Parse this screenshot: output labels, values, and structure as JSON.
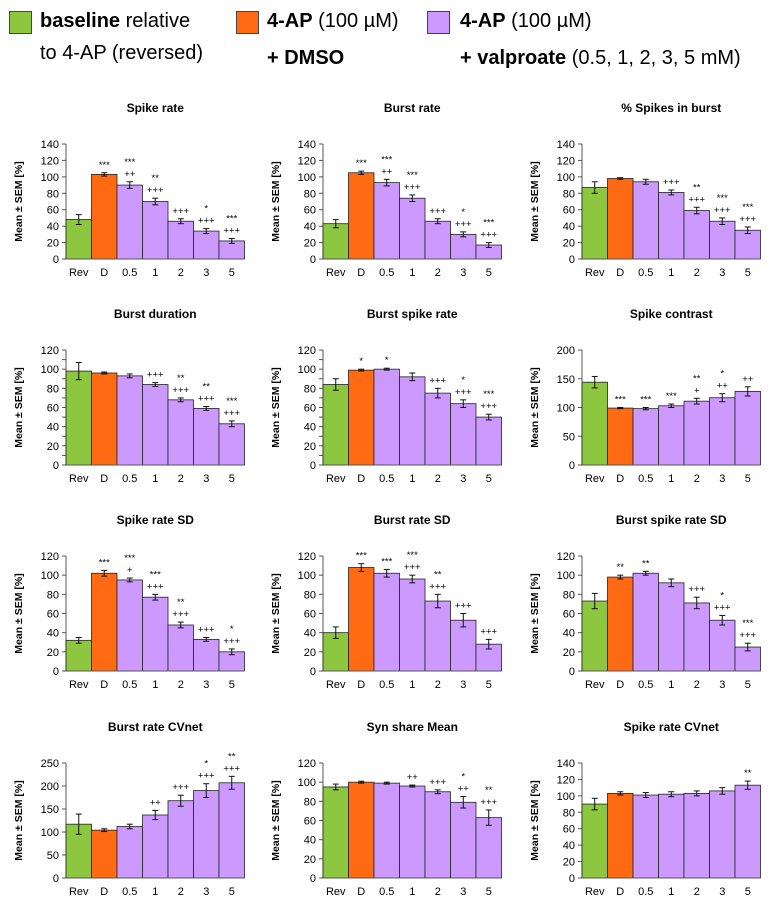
{
  "legend": {
    "items": [
      {
        "name": "baseline",
        "color": "#8dc63f",
        "bold": "baseline",
        "rest": " relative",
        "line2": "to 4-AP (reversed)"
      },
      {
        "name": "dmso",
        "color": "#ff6a13",
        "bold": "4-AP",
        "rest": " (100  µM)",
        "line2": "+ DMSO"
      },
      {
        "name": "valproate",
        "color": "#cc99ff",
        "bold": "4-AP",
        "rest": " (100 µM)",
        "line2_bold": "+ valproate",
        "line2_rest": " (0.5, 1, 2, 3, 5 mM)"
      }
    ]
  },
  "colors": {
    "baseline": "#8dc63f",
    "dmso": "#ff6a13",
    "valproate": "#cc99ff",
    "stroke": "#222222"
  },
  "chart_data": [
    {
      "type": "bar",
      "title": "Spike rate",
      "ylabel": "Mean ± SEM [%]",
      "categories": [
        "Rev",
        "D",
        "0.5",
        "1",
        "2",
        "3",
        "5"
      ],
      "values": [
        48,
        103,
        90,
        70,
        46,
        34,
        22
      ],
      "errors": [
        6,
        2,
        4,
        4,
        3,
        3,
        3
      ],
      "ylim": [
        0,
        140
      ],
      "yticks": [
        0,
        20,
        40,
        60,
        80,
        100,
        120,
        140
      ],
      "annotations": [
        [
          "",
          ""
        ],
        [
          "***",
          ""
        ],
        [
          "***",
          "++"
        ],
        [
          "**",
          "+++"
        ],
        [
          "",
          "+++"
        ],
        [
          "*",
          "+++"
        ],
        [
          "***",
          "+++"
        ]
      ]
    },
    {
      "type": "bar",
      "title": "Burst rate",
      "ylabel": "Mean ± SEM [%]",
      "categories": [
        "Rev",
        "D",
        "0.5",
        "1",
        "2",
        "3",
        "5"
      ],
      "values": [
        43,
        105,
        93,
        74,
        46,
        30,
        17
      ],
      "errors": [
        5,
        2,
        4,
        4,
        3,
        3,
        3
      ],
      "ylim": [
        0,
        140
      ],
      "yticks": [
        0,
        20,
        40,
        60,
        80,
        100,
        120,
        140
      ],
      "annotations": [
        [
          "",
          ""
        ],
        [
          "***",
          ""
        ],
        [
          "***",
          "++"
        ],
        [
          "***",
          "+++"
        ],
        [
          "",
          "+++"
        ],
        [
          "*",
          "+++"
        ],
        [
          "***",
          "+++"
        ]
      ]
    },
    {
      "type": "bar",
      "title": "% Spikes in burst",
      "ylabel": "Mean ± SEM [%]",
      "categories": [
        "Rev",
        "D",
        "0.5",
        "1",
        "2",
        "3",
        "5"
      ],
      "values": [
        87,
        98,
        94,
        81,
        59,
        46,
        35
      ],
      "errors": [
        7,
        1,
        3,
        3,
        4,
        4,
        4
      ],
      "ylim": [
        0,
        140
      ],
      "yticks": [
        0,
        20,
        40,
        60,
        80,
        100,
        120,
        140
      ],
      "annotations": [
        [
          "",
          ""
        ],
        [
          "",
          ""
        ],
        [
          "",
          ""
        ],
        [
          "",
          "+++"
        ],
        [
          "**",
          "+++"
        ],
        [
          "***",
          "+++"
        ],
        [
          "***",
          "+++"
        ]
      ]
    },
    {
      "type": "bar",
      "title": "Burst duration",
      "ylabel": "Mean ± SEM [%]",
      "categories": [
        "Rev",
        "D",
        "0.5",
        "1",
        "2",
        "3",
        "5"
      ],
      "values": [
        98,
        96,
        93,
        84,
        68,
        59,
        43
      ],
      "errors": [
        9,
        1,
        2,
        2,
        2,
        2,
        3
      ],
      "ylim": [
        0,
        120
      ],
      "yticks": [
        0,
        10,
        20,
        30,
        40,
        50,
        60,
        70,
        80,
        90,
        100,
        110,
        120
      ],
      "ytick_labels": [
        0,
        null,
        20,
        null,
        40,
        null,
        60,
        null,
        80,
        null,
        100,
        null,
        120
      ],
      "annotations": [
        [
          "",
          ""
        ],
        [
          "",
          ""
        ],
        [
          "",
          ""
        ],
        [
          "",
          "+++"
        ],
        [
          "**",
          "+++"
        ],
        [
          "**",
          "+++"
        ],
        [
          "***",
          "+++"
        ]
      ]
    },
    {
      "type": "bar",
      "title": "Burst spike rate",
      "ylabel": "Mean ± SEM [%]",
      "categories": [
        "Rev",
        "D",
        "0.5",
        "1",
        "2",
        "3",
        "5"
      ],
      "values": [
        84,
        99,
        100,
        92,
        75,
        64,
        50
      ],
      "errors": [
        6,
        1,
        1,
        4,
        5,
        4,
        3
      ],
      "ylim": [
        0,
        120
      ],
      "yticks": [
        0,
        10,
        20,
        30,
        40,
        50,
        60,
        70,
        80,
        90,
        100,
        110,
        120
      ],
      "ytick_labels": [
        0,
        null,
        20,
        null,
        40,
        null,
        60,
        null,
        80,
        null,
        100,
        null,
        120
      ],
      "annotations": [
        [
          "",
          ""
        ],
        [
          "*",
          ""
        ],
        [
          "*",
          ""
        ],
        [
          "",
          ""
        ],
        [
          "",
          "+++"
        ],
        [
          "*",
          "+++"
        ],
        [
          "***",
          "+++"
        ]
      ]
    },
    {
      "type": "bar",
      "title": "Spike contrast",
      "ylabel": "Mean ± SEM [%]",
      "categories": [
        "Rev",
        "D",
        "0.5",
        "1",
        "2",
        "3",
        "5"
      ],
      "values": [
        144,
        99,
        98,
        103,
        111,
        117,
        128
      ],
      "errors": [
        10,
        1,
        2,
        3,
        5,
        7,
        8
      ],
      "ylim": [
        0,
        200
      ],
      "yticks": [
        0,
        50,
        100,
        150,
        200
      ],
      "annotations": [
        [
          "",
          ""
        ],
        [
          "",
          "***"
        ],
        [
          "",
          "***"
        ],
        [
          "",
          "***"
        ],
        [
          "**",
          "+"
        ],
        [
          "*",
          "++"
        ],
        [
          "",
          "++"
        ]
      ]
    },
    {
      "type": "bar",
      "title": "Spike rate SD",
      "ylabel": "Mean ± SEM [%]",
      "categories": [
        "Rev",
        "D",
        "0.5",
        "1",
        "2",
        "3",
        "5"
      ],
      "values": [
        32,
        102,
        95,
        77,
        48,
        33,
        20
      ],
      "errors": [
        3,
        3,
        2,
        3,
        3,
        2,
        3
      ],
      "ylim": [
        0,
        120
      ],
      "yticks": [
        0,
        20,
        40,
        60,
        80,
        100,
        120
      ],
      "annotations": [
        [
          "",
          ""
        ],
        [
          "***",
          ""
        ],
        [
          "***",
          "+"
        ],
        [
          "***",
          "+++"
        ],
        [
          "**",
          "+++"
        ],
        [
          "",
          "+++"
        ],
        [
          "*",
          "+++"
        ]
      ]
    },
    {
      "type": "bar",
      "title": "Burst rate SD",
      "ylabel": "Mean ± SEM [%]",
      "categories": [
        "Rev",
        "D",
        "0.5",
        "1",
        "2",
        "3",
        "5"
      ],
      "values": [
        40,
        108,
        102,
        96,
        73,
        53,
        28
      ],
      "errors": [
        6,
        4,
        4,
        4,
        7,
        7,
        5
      ],
      "ylim": [
        0,
        120
      ],
      "yticks": [
        0,
        20,
        40,
        60,
        80,
        100,
        120
      ],
      "annotations": [
        [
          "",
          ""
        ],
        [
          "***",
          ""
        ],
        [
          "***",
          ""
        ],
        [
          "***",
          "+++"
        ],
        [
          "**",
          "+++"
        ],
        [
          "",
          "+++"
        ],
        [
          "",
          "+++"
        ]
      ]
    },
    {
      "type": "bar",
      "title": "Burst spike rate SD",
      "ylabel": "Mean ± SEM [%]",
      "categories": [
        "Rev",
        "D",
        "0.5",
        "1",
        "2",
        "3",
        "5"
      ],
      "values": [
        73,
        98,
        102,
        92,
        71,
        53,
        25
      ],
      "errors": [
        8,
        2,
        2,
        4,
        6,
        5,
        4
      ],
      "ylim": [
        0,
        120
      ],
      "yticks": [
        0,
        20,
        40,
        60,
        80,
        100,
        120
      ],
      "annotations": [
        [
          "",
          ""
        ],
        [
          "**",
          ""
        ],
        [
          "**",
          ""
        ],
        [
          "",
          ""
        ],
        [
          "",
          "+++"
        ],
        [
          "*",
          "+++"
        ],
        [
          "***",
          "+++"
        ]
      ]
    },
    {
      "type": "bar",
      "title": "Burst rate CVnet",
      "ylabel": "Mean ± SEM [%]",
      "categories": [
        "Rev",
        "D",
        "0.5",
        "1",
        "2",
        "3",
        "5"
      ],
      "values": [
        117,
        104,
        112,
        137,
        168,
        190,
        207
      ],
      "errors": [
        22,
        3,
        5,
        10,
        12,
        15,
        14
      ],
      "ylim": [
        0,
        250
      ],
      "yticks": [
        0,
        50,
        100,
        150,
        200,
        250
      ],
      "annotations": [
        [
          "",
          ""
        ],
        [
          "",
          ""
        ],
        [
          "",
          ""
        ],
        [
          "",
          "++"
        ],
        [
          "",
          "+++"
        ],
        [
          "*",
          "+++"
        ],
        [
          "**",
          "+++"
        ]
      ]
    },
    {
      "type": "bar",
      "title": "Syn share Mean",
      "ylabel": "Mean ± SEM [%]",
      "categories": [
        "Rev",
        "D",
        "0.5",
        "1",
        "2",
        "3",
        "5"
      ],
      "values": [
        95,
        100,
        99,
        96,
        90,
        79,
        63
      ],
      "errors": [
        3,
        1,
        1,
        1,
        2,
        6,
        8
      ],
      "ylim": [
        0,
        120
      ],
      "yticks": [
        0,
        20,
        40,
        60,
        80,
        100,
        120
      ],
      "annotations": [
        [
          "",
          ""
        ],
        [
          "",
          ""
        ],
        [
          "",
          ""
        ],
        [
          "",
          "++"
        ],
        [
          "",
          "+++"
        ],
        [
          "*",
          "++"
        ],
        [
          "**",
          "+++"
        ]
      ]
    },
    {
      "type": "bar",
      "title": "Spike rate CVnet",
      "ylabel": "Mean ± SEM [%]",
      "categories": [
        "Rev",
        "D",
        "0.5",
        "1",
        "2",
        "3",
        "5"
      ],
      "values": [
        90,
        103,
        101,
        102,
        103,
        106,
        113
      ],
      "errors": [
        7,
        2,
        3,
        3,
        3,
        4,
        5
      ],
      "ylim": [
        0,
        140
      ],
      "yticks": [
        0,
        20,
        40,
        60,
        80,
        100,
        120,
        140
      ],
      "annotations": [
        [
          "",
          ""
        ],
        [
          "",
          ""
        ],
        [
          "",
          ""
        ],
        [
          "",
          ""
        ],
        [
          "",
          ""
        ],
        [
          "",
          ""
        ],
        [
          "**",
          ""
        ]
      ]
    }
  ]
}
